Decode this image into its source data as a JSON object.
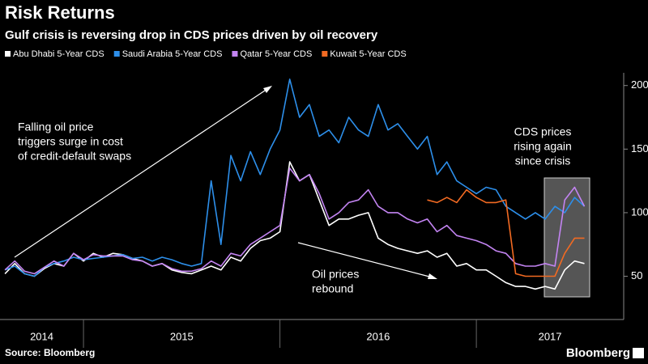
{
  "chart_data": {
    "type": "line",
    "title": "Risk Returns",
    "subtitle": "Gulf crisis is reversing drop in CDS prices driven by oil recovery",
    "source": "Source: Bloomberg",
    "brand": "Bloomberg",
    "x": [
      2014.6,
      2014.65,
      2014.7,
      2014.75,
      2014.8,
      2014.85,
      2014.9,
      2014.95,
      2015,
      2015.05,
      2015.1,
      2015.15,
      2015.2,
      2015.25,
      2015.3,
      2015.35,
      2015.4,
      2015.45,
      2015.5,
      2015.55,
      2015.6,
      2015.65,
      2015.7,
      2015.75,
      2015.8,
      2015.85,
      2015.9,
      2015.95,
      2016,
      2016.05,
      2016.1,
      2016.15,
      2016.2,
      2016.25,
      2016.3,
      2016.35,
      2016.4,
      2016.45,
      2016.5,
      2016.55,
      2016.6,
      2016.65,
      2016.7,
      2016.75,
      2016.8,
      2016.85,
      2016.9,
      2016.95,
      2017,
      2017.05,
      2017.1,
      2017.15,
      2017.2,
      2017.25,
      2017.3,
      2017.35,
      2017.4,
      2017.45,
      2017.5,
      2017.55
    ],
    "series": [
      {
        "name": "Abu Dhabi 5-Year CDS",
        "color": "#ffffff",
        "values": [
          52,
          60,
          52,
          50,
          56,
          60,
          58,
          68,
          62,
          68,
          65,
          68,
          67,
          64,
          62,
          58,
          60,
          55,
          53,
          52,
          55,
          58,
          55,
          65,
          62,
          72,
          78,
          80,
          85,
          140,
          125,
          130,
          110,
          90,
          95,
          95,
          98,
          100,
          80,
          75,
          72,
          70,
          68,
          70,
          65,
          68,
          58,
          60,
          55,
          55,
          50,
          45,
          42,
          42,
          40,
          42,
          40,
          55,
          62,
          60
        ]
      },
      {
        "name": "Saudi Arabia 5-Year CDS",
        "color": "#2d8fea",
        "values": [
          55,
          58,
          52,
          50,
          57,
          60,
          62,
          65,
          63,
          64,
          65,
          66,
          67,
          64,
          65,
          62,
          65,
          63,
          60,
          58,
          60,
          125,
          75,
          145,
          125,
          148,
          130,
          150,
          165,
          205,
          175,
          185,
          160,
          165,
          155,
          175,
          165,
          160,
          185,
          165,
          170,
          160,
          150,
          160,
          130,
          140,
          125,
          120,
          115,
          120,
          118,
          105,
          100,
          95,
          100,
          95,
          105,
          100,
          112,
          105
        ]
      },
      {
        "name": "Qatar 5-Year CDS",
        "color": "#c384f2",
        "values": [
          55,
          62,
          54,
          52,
          57,
          62,
          58,
          68,
          63,
          67,
          66,
          66,
          66,
          63,
          62,
          58,
          60,
          56,
          54,
          54,
          56,
          62,
          58,
          68,
          66,
          75,
          80,
          85,
          90,
          135,
          125,
          130,
          115,
          95,
          100,
          108,
          110,
          118,
          105,
          100,
          100,
          95,
          92,
          95,
          85,
          90,
          82,
          80,
          78,
          75,
          70,
          68,
          60,
          58,
          58,
          60,
          58,
          110,
          120,
          105
        ]
      },
      {
        "name": "Kuwait 5-Year CDS",
        "color": "#f26a22",
        "values": [
          null,
          null,
          null,
          null,
          null,
          null,
          null,
          null,
          null,
          null,
          null,
          null,
          null,
          null,
          null,
          null,
          null,
          null,
          null,
          null,
          null,
          null,
          null,
          null,
          null,
          null,
          null,
          null,
          null,
          null,
          null,
          null,
          null,
          null,
          null,
          null,
          null,
          null,
          null,
          null,
          null,
          null,
          null,
          110,
          108,
          112,
          108,
          118,
          112,
          108,
          108,
          110,
          52,
          50,
          50,
          50,
          50,
          68,
          80,
          80
        ]
      }
    ],
    "xlim": [
      2014.575,
      2017.75
    ],
    "xticks": [
      2014,
      2015,
      2016,
      2017
    ],
    "ylim": [
      16,
      210
    ],
    "yticks": [
      50,
      100,
      150,
      200
    ],
    "grid": false,
    "annotations": [
      [
        "Falling oil price",
        "triggers surge in cost",
        "of credit-default swaps"
      ],
      [
        "Oil prices",
        "rebound"
      ],
      [
        "CDS prices",
        "rising again",
        "since crisis"
      ]
    ]
  }
}
